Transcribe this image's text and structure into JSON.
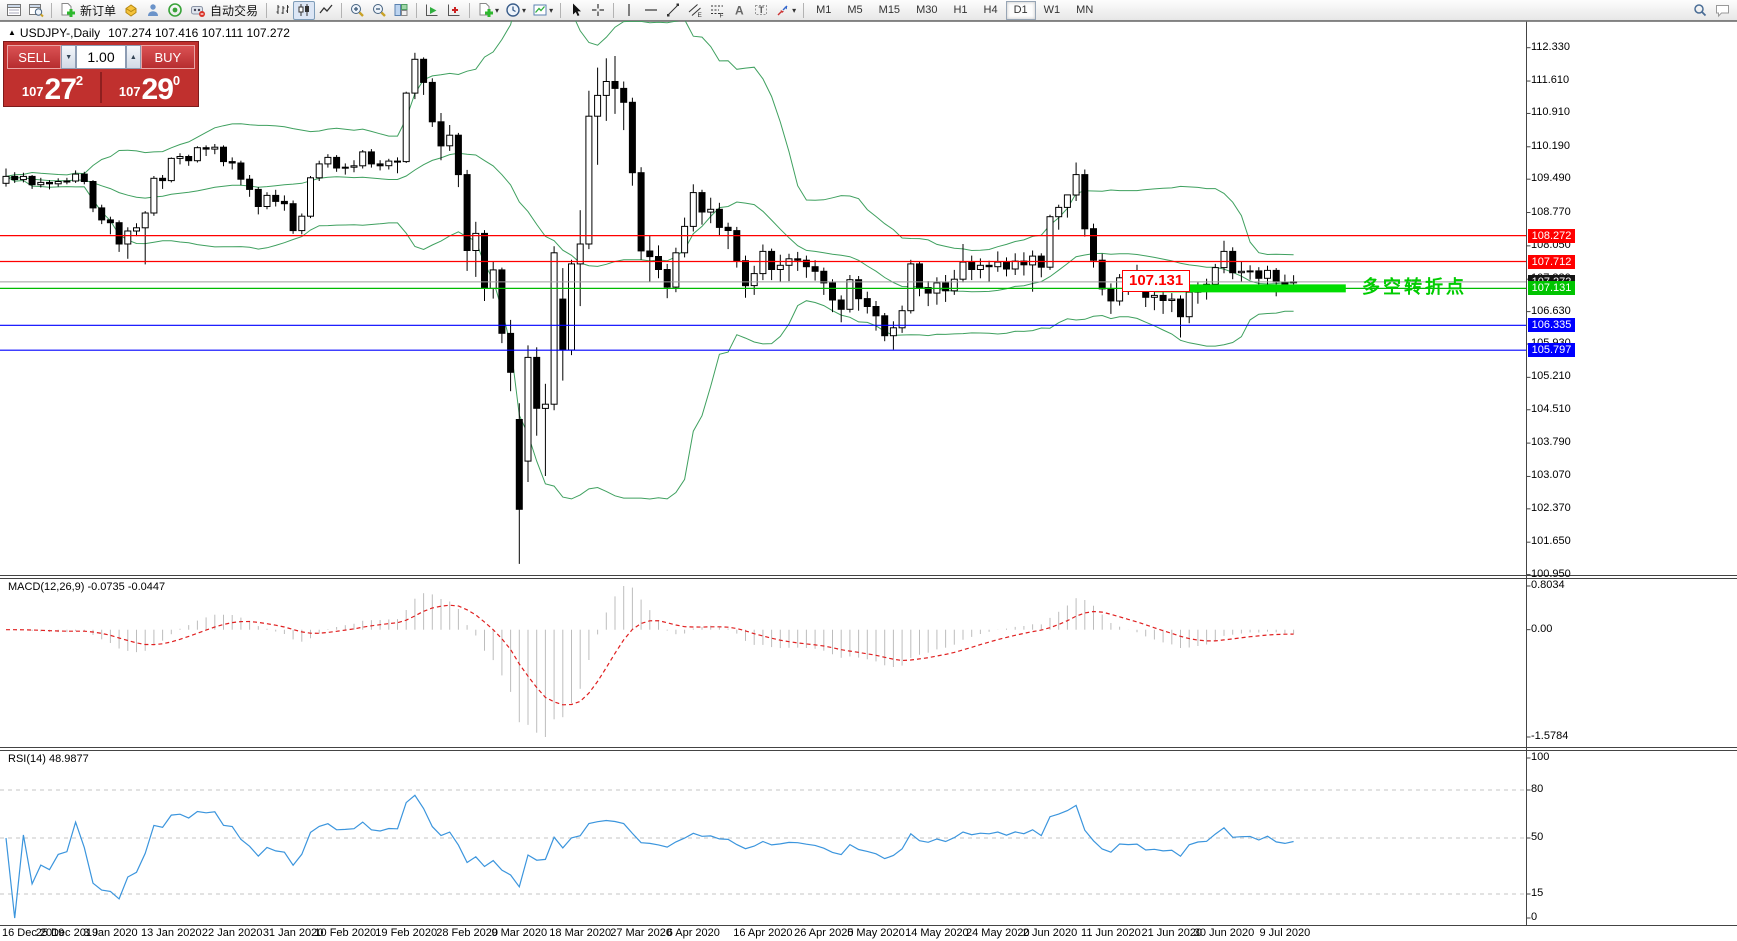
{
  "toolbar": {
    "new_order_label": "新订单",
    "autotrade_label": "自动交易",
    "timeframes": [
      "M1",
      "M5",
      "M15",
      "M30",
      "H1",
      "H4",
      "D1",
      "W1",
      "MN"
    ],
    "active_timeframe": "D1",
    "drawing_letters": {
      "channel": "E",
      "fibonacci": "F",
      "text": "A",
      "label": "T"
    }
  },
  "window": {
    "collapse_marker": "▲",
    "symbol_period": "USDJPY-,Daily",
    "ohlc": "107.274 107.416 107.111 107.272"
  },
  "trade_panel": {
    "sell_label": "SELL",
    "buy_label": "BUY",
    "volume": "1.00",
    "sell": {
      "prefix": "107",
      "big": "27",
      "sup": "2"
    },
    "buy": {
      "prefix": "107",
      "big": "29",
      "sup": "0"
    }
  },
  "indicator_labels": {
    "macd": "MACD(12,26,9) -0.0735 -0.0447",
    "rsi": "RSI(14) 48.9877"
  },
  "annotations": {
    "boxed_price": "107.131",
    "turning_point": "多空转折点",
    "green_color": "#00cc00"
  },
  "axes": {
    "price_ticks": [
      "112.330",
      "111.610",
      "110.910",
      "110.190",
      "109.490",
      "108.770",
      "108.050",
      "107.330",
      "106.630",
      "105.930",
      "105.210",
      "104.510",
      "103.790",
      "103.070",
      "102.370",
      "101.650",
      "100.950"
    ],
    "price_badges": [
      {
        "text": "108.272",
        "bg": "#ff0000"
      },
      {
        "text": "107.712",
        "bg": "#ff0000"
      },
      {
        "text": "107.272",
        "bg": "#141414"
      },
      {
        "text": "107.131",
        "bg": "#00c400"
      },
      {
        "text": "106.335",
        "bg": "#0000ff"
      },
      {
        "text": "105.797",
        "bg": "#0000ff"
      }
    ],
    "macd_ticks": {
      "max": "0.8034",
      "zero": "0.00",
      "min": "-1.5784"
    },
    "rsi_ticks": [
      "100",
      "80",
      "50",
      "15",
      "0"
    ]
  },
  "chart_data": {
    "type": "candlestick",
    "symbol": "USDJPY-",
    "timeframe": "Daily",
    "ohlc_header": {
      "open": 107.274,
      "high": 107.416,
      "low": 107.111,
      "close": 107.272
    },
    "ylim_main": [
      100.95,
      112.33
    ],
    "candles": [
      [
        109.4,
        109.72,
        109.33,
        109.55
      ],
      [
        109.55,
        109.64,
        109.41,
        109.48
      ],
      [
        109.48,
        109.63,
        109.42,
        109.55
      ],
      [
        109.55,
        109.58,
        109.28,
        109.37
      ],
      [
        109.37,
        109.52,
        109.31,
        109.42
      ],
      [
        109.42,
        109.47,
        109.27,
        109.39
      ],
      [
        109.39,
        109.51,
        109.33,
        109.44
      ],
      [
        109.44,
        109.52,
        109.38,
        109.45
      ],
      [
        109.45,
        109.68,
        109.41,
        109.6
      ],
      [
        109.6,
        109.65,
        109.38,
        109.44
      ],
      [
        109.44,
        109.47,
        108.78,
        108.87
      ],
      [
        108.87,
        108.94,
        108.52,
        108.61
      ],
      [
        108.61,
        108.68,
        108.3,
        108.55
      ],
      [
        108.55,
        108.6,
        107.92,
        108.09
      ],
      [
        108.09,
        108.45,
        107.77,
        108.37
      ],
      [
        108.37,
        108.54,
        108.26,
        108.44
      ],
      [
        108.44,
        108.8,
        107.65,
        108.76
      ],
      [
        108.76,
        109.56,
        108.7,
        109.51
      ],
      [
        109.51,
        109.58,
        109.28,
        109.46
      ],
      [
        109.46,
        109.96,
        109.42,
        109.94
      ],
      [
        109.94,
        110.05,
        109.81,
        109.98
      ],
      [
        109.98,
        110.02,
        109.78,
        109.89
      ],
      [
        109.89,
        110.2,
        109.85,
        110.17
      ],
      [
        110.17,
        110.22,
        109.99,
        110.14
      ],
      [
        110.14,
        110.25,
        110.03,
        110.18
      ],
      [
        110.18,
        110.22,
        109.77,
        109.87
      ],
      [
        109.87,
        109.96,
        109.7,
        109.84
      ],
      [
        109.84,
        109.89,
        109.36,
        109.49
      ],
      [
        109.49,
        109.58,
        109.11,
        109.27
      ],
      [
        109.27,
        109.32,
        108.73,
        108.9
      ],
      [
        108.9,
        109.21,
        108.84,
        109.14
      ],
      [
        109.14,
        109.26,
        108.9,
        109.01
      ],
      [
        109.01,
        109.14,
        108.81,
        108.96
      ],
      [
        108.96,
        109.03,
        108.31,
        108.38
      ],
      [
        108.38,
        108.75,
        108.3,
        108.69
      ],
      [
        108.69,
        109.56,
        108.65,
        109.52
      ],
      [
        109.52,
        109.89,
        109.45,
        109.82
      ],
      [
        109.82,
        110.03,
        109.74,
        109.96
      ],
      [
        109.96,
        110.01,
        109.65,
        109.73
      ],
      [
        109.73,
        109.83,
        109.59,
        109.75
      ],
      [
        109.75,
        109.9,
        109.64,
        109.78
      ],
      [
        109.78,
        110.12,
        109.72,
        110.08
      ],
      [
        110.08,
        110.14,
        109.74,
        109.82
      ],
      [
        109.82,
        109.9,
        109.68,
        109.78
      ],
      [
        109.78,
        109.93,
        109.7,
        109.88
      ],
      [
        109.88,
        109.96,
        109.62,
        109.87
      ],
      [
        109.87,
        111.38,
        109.84,
        111.35
      ],
      [
        111.35,
        112.22,
        111.22,
        112.08
      ],
      [
        112.08,
        112.12,
        111.31,
        111.58
      ],
      [
        111.58,
        111.67,
        110.62,
        110.73
      ],
      [
        110.73,
        110.92,
        109.9,
        110.21
      ],
      [
        110.21,
        110.66,
        110.1,
        110.44
      ],
      [
        110.44,
        110.49,
        109.32,
        109.59
      ],
      [
        109.59,
        109.69,
        107.51,
        107.95
      ],
      [
        107.95,
        108.57,
        107.38,
        108.32
      ],
      [
        108.32,
        108.39,
        106.86,
        107.13
      ],
      [
        107.13,
        107.72,
        106.91,
        107.53
      ],
      [
        107.53,
        107.58,
        105.95,
        106.16
      ],
      [
        106.16,
        106.45,
        104.91,
        105.32
      ],
      [
        104.3,
        104.65,
        101.18,
        102.36
      ],
      [
        103.4,
        105.9,
        102.95,
        105.64
      ],
      [
        105.64,
        105.86,
        103.95,
        104.54
      ],
      [
        104.54,
        105.07,
        103.08,
        104.63
      ],
      [
        104.63,
        108.04,
        104.5,
        107.9
      ],
      [
        106.9,
        107.57,
        105.14,
        105.8
      ],
      [
        105.8,
        107.75,
        105.69,
        107.66
      ],
      [
        107.66,
        108.82,
        106.75,
        108.09
      ],
      [
        108.09,
        111.4,
        107.98,
        110.85
      ],
      [
        110.85,
        111.9,
        109.8,
        111.3
      ],
      [
        111.3,
        112.1,
        110.75,
        111.6
      ],
      [
        111.6,
        112.15,
        110.9,
        111.45
      ],
      [
        111.45,
        111.6,
        110.55,
        111.15
      ],
      [
        111.15,
        111.25,
        109.35,
        109.63
      ],
      [
        109.63,
        109.75,
        107.75,
        107.94
      ],
      [
        107.94,
        108.28,
        107.28,
        107.82
      ],
      [
        107.82,
        108.06,
        107.35,
        107.54
      ],
      [
        107.54,
        107.66,
        106.92,
        107.16
      ],
      [
        107.16,
        108.01,
        107.05,
        107.9
      ],
      [
        107.9,
        108.66,
        107.8,
        108.47
      ],
      [
        108.47,
        109.38,
        108.36,
        109.2
      ],
      [
        109.2,
        109.26,
        108.51,
        108.78
      ],
      [
        108.78,
        109.09,
        108.54,
        108.84
      ],
      [
        108.84,
        108.98,
        108.26,
        108.45
      ],
      [
        108.45,
        108.55,
        107.98,
        108.38
      ],
      [
        108.38,
        108.46,
        107.58,
        107.73
      ],
      [
        107.73,
        107.84,
        106.93,
        107.19
      ],
      [
        107.19,
        107.62,
        106.99,
        107.45
      ],
      [
        107.45,
        108.08,
        107.31,
        107.93
      ],
      [
        107.93,
        107.99,
        107.31,
        107.54
      ],
      [
        107.54,
        107.86,
        107.27,
        107.63
      ],
      [
        107.63,
        107.88,
        107.29,
        107.77
      ],
      [
        107.77,
        107.92,
        107.51,
        107.74
      ],
      [
        107.74,
        107.84,
        107.36,
        107.6
      ],
      [
        107.6,
        107.74,
        107.3,
        107.5
      ],
      [
        107.5,
        107.58,
        106.99,
        107.25
      ],
      [
        107.25,
        107.33,
        106.62,
        106.88
      ],
      [
        106.88,
        106.98,
        106.4,
        106.68
      ],
      [
        106.68,
        107.42,
        106.61,
        107.32
      ],
      [
        107.32,
        107.4,
        106.65,
        106.91
      ],
      [
        106.91,
        107.06,
        106.59,
        106.74
      ],
      [
        106.74,
        106.86,
        106.22,
        106.54
      ],
      [
        106.54,
        106.6,
        105.99,
        106.11
      ],
      [
        106.11,
        106.42,
        105.81,
        106.28
      ],
      [
        106.28,
        106.76,
        106.17,
        106.65
      ],
      [
        106.65,
        107.75,
        106.59,
        107.66
      ],
      [
        107.66,
        107.72,
        106.96,
        107.15
      ],
      [
        107.15,
        107.29,
        106.75,
        107.03
      ],
      [
        107.03,
        107.37,
        106.78,
        107.25
      ],
      [
        107.25,
        107.42,
        106.84,
        107.08
      ],
      [
        107.08,
        107.53,
        106.99,
        107.33
      ],
      [
        107.33,
        108.09,
        107.26,
        107.7
      ],
      [
        107.7,
        107.84,
        107.31,
        107.54
      ],
      [
        107.54,
        107.78,
        107.35,
        107.63
      ],
      [
        107.63,
        107.73,
        107.27,
        107.6
      ],
      [
        107.6,
        107.93,
        107.49,
        107.7
      ],
      [
        107.7,
        107.8,
        107.39,
        107.55
      ],
      [
        107.55,
        107.89,
        107.42,
        107.72
      ],
      [
        107.72,
        107.91,
        107.41,
        107.64
      ],
      [
        107.64,
        107.95,
        107.06,
        107.83
      ],
      [
        107.83,
        107.89,
        107.37,
        107.59
      ],
      [
        107.59,
        108.72,
        107.53,
        108.68
      ],
      [
        108.68,
        108.94,
        108.4,
        108.88
      ],
      [
        108.88,
        109.16,
        108.66,
        109.15
      ],
      [
        109.15,
        109.85,
        109.02,
        109.59
      ],
      [
        109.59,
        109.7,
        108.25,
        108.42
      ],
      [
        108.42,
        108.53,
        107.58,
        107.74
      ],
      [
        107.74,
        107.88,
        106.98,
        107.12
      ],
      [
        107.12,
        107.24,
        106.58,
        106.86
      ],
      [
        106.86,
        107.44,
        106.76,
        107.36
      ],
      [
        107.36,
        107.42,
        106.99,
        107.32
      ],
      [
        107.32,
        107.64,
        107.16,
        107.35
      ],
      [
        107.35,
        107.44,
        106.73,
        106.94
      ],
      [
        106.94,
        107.07,
        106.66,
        106.98
      ],
      [
        106.98,
        107.05,
        106.58,
        106.87
      ],
      [
        106.87,
        107.03,
        106.62,
        106.9
      ],
      [
        106.9,
        106.98,
        106.07,
        106.52
      ],
      [
        106.52,
        107.12,
        106.38,
        107.05
      ],
      [
        107.05,
        107.26,
        106.8,
        107.19
      ],
      [
        107.19,
        107.34,
        106.89,
        107.22
      ],
      [
        107.22,
        107.66,
        107.09,
        107.58
      ],
      [
        107.58,
        108.16,
        107.46,
        107.93
      ],
      [
        107.93,
        108.02,
        107.33,
        107.47
      ],
      [
        107.47,
        107.71,
        107.27,
        107.5
      ],
      [
        107.5,
        107.63,
        107.32,
        107.51
      ],
      [
        107.51,
        107.59,
        107.18,
        107.35
      ],
      [
        107.35,
        107.62,
        107.21,
        107.52
      ],
      [
        107.52,
        107.57,
        106.96,
        107.27
      ],
      [
        107.27,
        107.43,
        107.06,
        107.2
      ],
      [
        107.274,
        107.416,
        107.111,
        107.272
      ]
    ],
    "date_labels": [
      [
        "16 Dec 2019",
        0
      ],
      [
        "25 Dec 2019",
        7
      ],
      [
        "3 Jan 2020",
        12
      ],
      [
        "13 Jan 2020",
        19
      ],
      [
        "22 Jan 2020",
        26
      ],
      [
        "31 Jan 2020",
        33
      ],
      [
        "10 Feb 2020",
        39
      ],
      [
        "19 Feb 2020",
        46
      ],
      [
        "28 Feb 2020",
        53
      ],
      [
        "9 Mar 2020",
        59
      ],
      [
        "18 Mar 2020",
        66
      ],
      [
        "27 Mar 2020",
        73
      ],
      [
        "6 Apr 2020",
        79
      ],
      [
        "16 Apr 2020",
        87
      ],
      [
        "26 Apr 2020",
        94
      ],
      [
        "5 May 2020",
        100
      ],
      [
        "14 May 2020",
        107
      ],
      [
        "24 May 2020",
        114
      ],
      [
        "2 Jun 2020",
        120
      ],
      [
        "11 Jun 2020",
        127
      ],
      [
        "21 Jun 2020",
        134
      ],
      [
        "30 Jun 2020",
        140
      ],
      [
        "9 Jul 2020",
        147
      ]
    ],
    "hlines": [
      {
        "price": 108.272,
        "color": "#ff0000",
        "w": 1.2
      },
      {
        "price": 107.712,
        "color": "#ff0000",
        "w": 1.2
      },
      {
        "price": 107.272,
        "color": "#9d9d9d",
        "w": 1
      },
      {
        "price": 107.131,
        "color": "#00bb00",
        "w": 1.2
      },
      {
        "price": 106.335,
        "color": "#0000ff",
        "w": 1.2
      },
      {
        "price": 105.797,
        "color": "#0000ff",
        "w": 1.2
      }
    ],
    "green_segment": {
      "price": 107.131,
      "from_index": 132,
      "to_index": 154,
      "thickness": 8,
      "color": "#00dd00"
    },
    "indicators": {
      "bollinger": {
        "period": 20,
        "deviation": 2,
        "color": "#3fa05f"
      },
      "macd": {
        "fast": 12,
        "slow": 26,
        "signal": 9,
        "histogram_color": "#bdbdbd",
        "signal_color": "#e02020",
        "axis_max": 0.8034,
        "axis_min": -1.5784
      },
      "rsi": {
        "period": 14,
        "color": "#3b95dd",
        "levels": [
          80,
          50,
          15
        ]
      }
    }
  }
}
